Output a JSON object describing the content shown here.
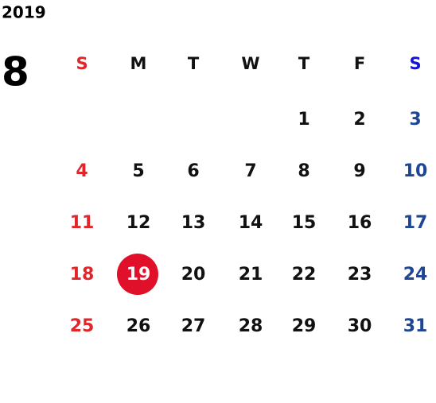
{
  "year": "2019",
  "month": "8",
  "weekdays": [
    "S",
    "M",
    "T",
    "W",
    "T",
    "F",
    "S"
  ],
  "weeks": [
    [
      null,
      null,
      null,
      null,
      1,
      2,
      3
    ],
    [
      4,
      5,
      6,
      7,
      8,
      9,
      10
    ],
    [
      11,
      12,
      13,
      14,
      15,
      16,
      17
    ],
    [
      18,
      19,
      20,
      21,
      22,
      23,
      24
    ],
    [
      25,
      26,
      27,
      28,
      29,
      30,
      31
    ]
  ],
  "highlighted_day": 19,
  "colors": {
    "sunday": "#e0252b",
    "saturday_header": "#1414d8",
    "saturday": "#1f4595",
    "weekday": "#111111",
    "highlight": "#e0102a",
    "highlight_text": "#ffffff"
  }
}
